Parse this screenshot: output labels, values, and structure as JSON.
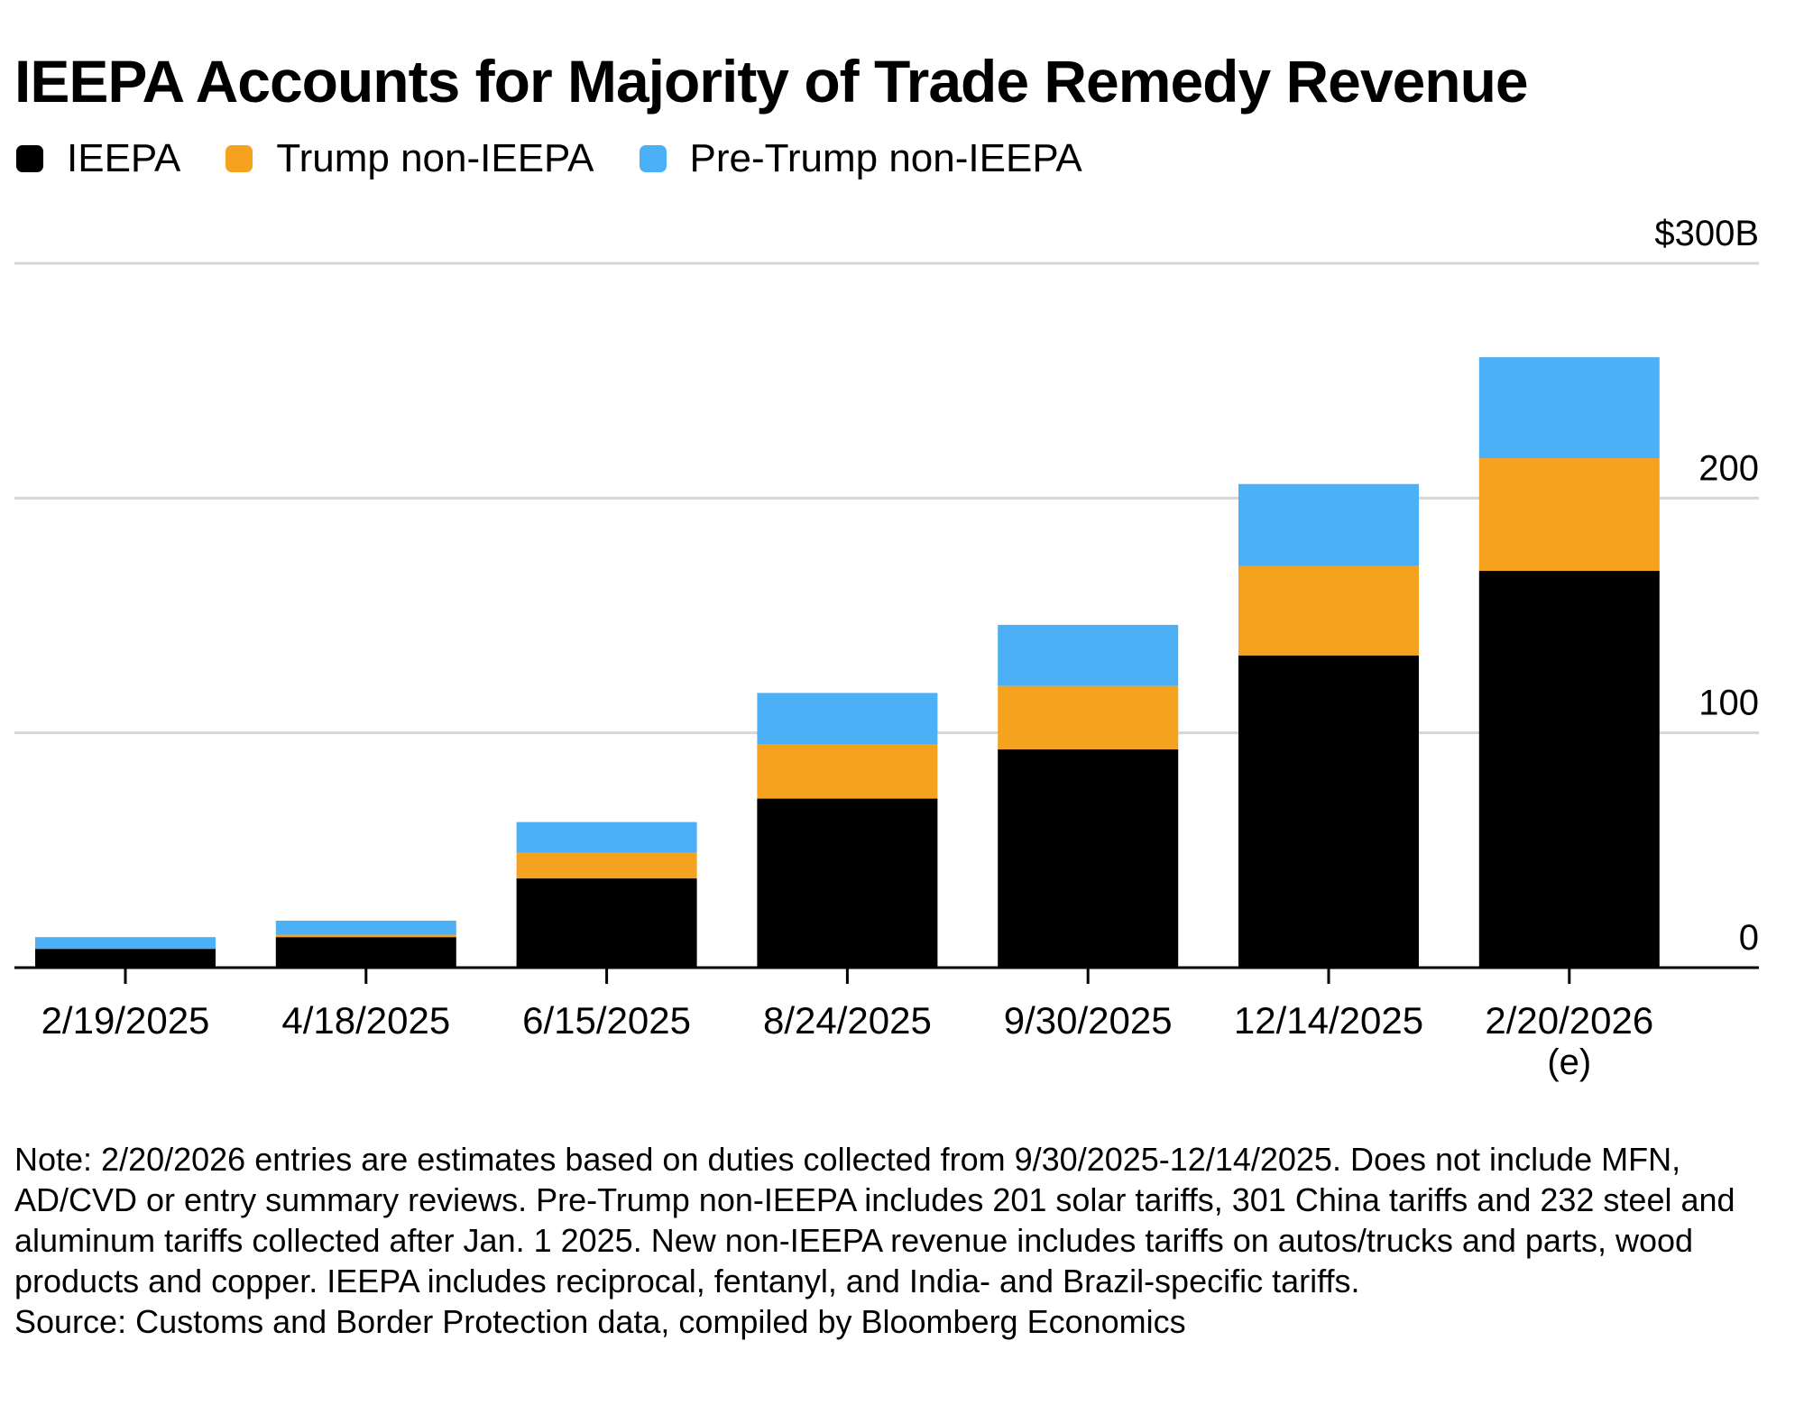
{
  "header": {
    "title": "IEEPA Accounts for Majority of Trade Remedy Revenue"
  },
  "legend": [
    {
      "label": "IEEPA",
      "color": "#000000"
    },
    {
      "label": "Trump non-IEEPA",
      "color": "#F5A21F"
    },
    {
      "label": "Pre-Trump non-IEEPA",
      "color": "#4CB0F6"
    }
  ],
  "chart_data": {
    "type": "bar",
    "stacked": true,
    "title": "IEEPA Accounts for Majority of Trade Remedy Revenue",
    "categories": [
      "2/19/2025",
      "4/18/2025",
      "6/15/2025",
      "8/24/2025",
      "9/30/2025",
      "12/14/2025",
      "2/20/2026"
    ],
    "category_sublabels": [
      "",
      "",
      "",
      "",
      "",
      "",
      "(e)"
    ],
    "series": [
      {
        "name": "IEEPA",
        "color": "#000000",
        "values": [
          8,
          13,
          38,
          72,
          93,
          133,
          169
        ]
      },
      {
        "name": "Trump non-IEEPA",
        "color": "#F5A21F",
        "values": [
          0,
          1,
          11,
          23,
          27,
          38,
          48
        ]
      },
      {
        "name": "Pre-Trump non-IEEPA",
        "color": "#4CB0F6",
        "values": [
          5,
          6,
          13,
          22,
          26,
          35,
          43
        ]
      }
    ],
    "ylim": [
      0,
      300
    ],
    "yticks": [
      0,
      100,
      200,
      300
    ],
    "ytick_labels": [
      "0",
      "100",
      "200",
      "$300B"
    ],
    "y_axis_position": "right",
    "grid": true
  },
  "footnote": {
    "note": "Note: 2/20/2026 entries are estimates based on duties collected from 9/30/2025-12/14/2025. Does not include MFN, AD/CVD or entry summary reviews. Pre-Trump non-IEEPA includes 201 solar tariffs, 301 China tariffs and 232 steel and aluminum tariffs collected after Jan. 1 2025. New non-IEEPA revenue includes tariffs on autos/trucks and parts, wood products and copper. IEEPA includes reciprocal, fentanyl, and India- and Brazil-specific tariffs.",
    "source": "Source: Customs and Border Protection data, compiled by Bloomberg Economics"
  }
}
